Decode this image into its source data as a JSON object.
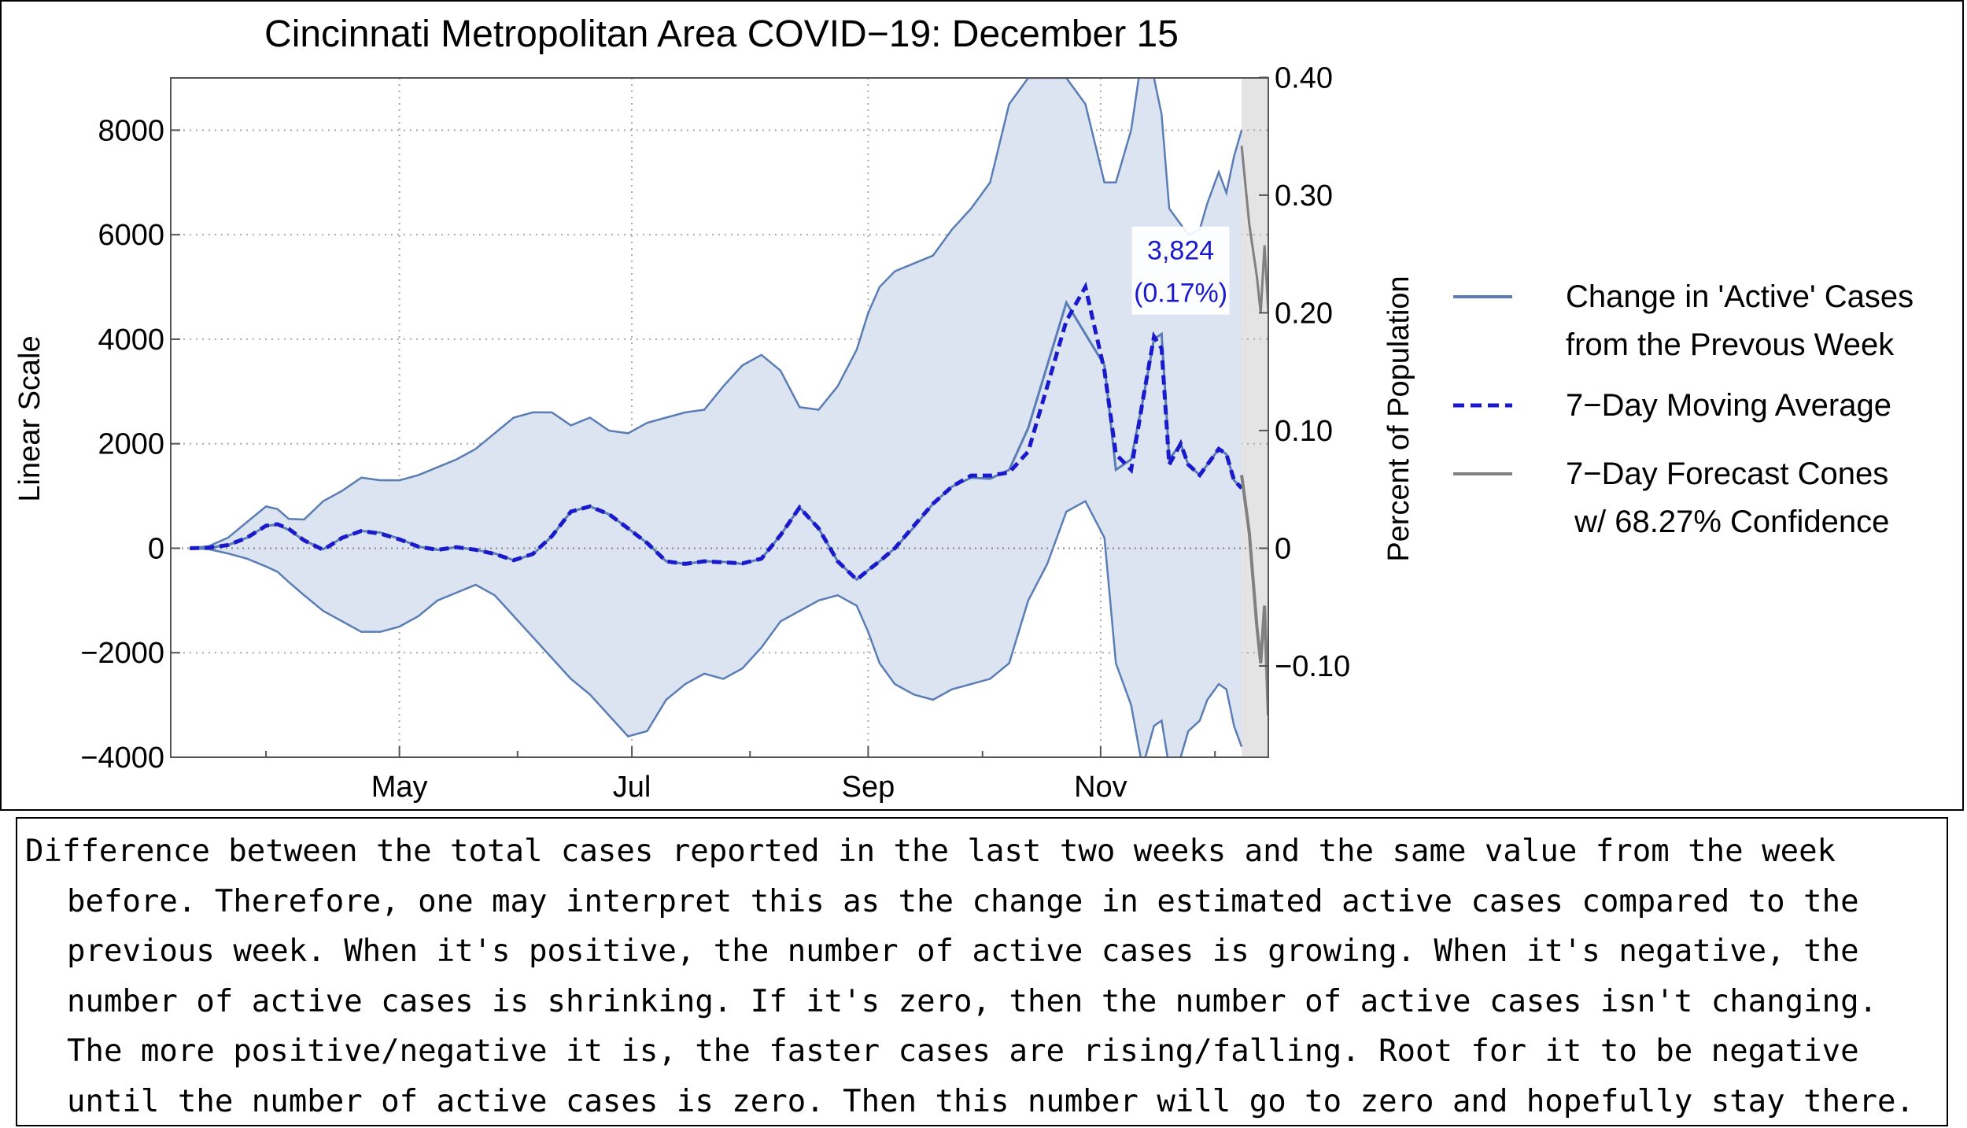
{
  "chart_data": {
    "type": "line",
    "title": "Cincinnati Metropolitan Area COVID−19: December 15",
    "ylabel_left": "Linear Scale",
    "ylabel_right": "Percent of Population",
    "ylim": [
      -4000,
      9000
    ],
    "y_ticks": [
      {
        "value": 8000,
        "label": "8000"
      },
      {
        "value": 6000,
        "label": "6000"
      },
      {
        "value": 4000,
        "label": "4000"
      },
      {
        "value": 2000,
        "label": "2000"
      },
      {
        "value": 0,
        "label": "0"
      },
      {
        "value": -2000,
        "label": "−2000"
      },
      {
        "value": -4000,
        "label": "−4000"
      }
    ],
    "y2_ticks": [
      {
        "value": 0.4,
        "label": "0.40"
      },
      {
        "value": 0.3,
        "label": "0.30"
      },
      {
        "value": 0.2,
        "label": "0.20"
      },
      {
        "value": 0.1,
        "label": "0.10"
      },
      {
        "value": 0,
        "label": "0"
      },
      {
        "value": -0.1,
        "label": "−0.10"
      }
    ],
    "y2_per_unit": 4.44e-05,
    "x_tick_labels": [
      {
        "day": 60,
        "label": "May"
      },
      {
        "day": 121,
        "label": "Jul"
      },
      {
        "day": 183,
        "label": "Sep"
      },
      {
        "day": 244,
        "label": "Nov"
      }
    ],
    "x_range_days": [
      0,
      288
    ],
    "x_minor_ticks": [
      25,
      91,
      152,
      213,
      274
    ],
    "x_gridlines": [
      60,
      121,
      183,
      244
    ],
    "forecast_start_day": 281,
    "annotation": {
      "day": 265,
      "value": 4500,
      "line1": "3,824",
      "line2": "(0.17%)"
    },
    "days": [
      5,
      10,
      15,
      20,
      25,
      28,
      31,
      35,
      40,
      45,
      50,
      55,
      60,
      65,
      70,
      75,
      80,
      85,
      90,
      95,
      100,
      105,
      110,
      115,
      120,
      125,
      130,
      135,
      140,
      145,
      150,
      155,
      160,
      165,
      170,
      175,
      180,
      183,
      186,
      190,
      195,
      200,
      205,
      210,
      215,
      220,
      225,
      230,
      235,
      240,
      245,
      248,
      252,
      255,
      258,
      260,
      262,
      265,
      267,
      270,
      272,
      275,
      277,
      279,
      281
    ],
    "series": [
      {
        "name": "Change in 'Active' Cases from the Prevous Week",
        "role": "observed",
        "values": [
          0,
          10,
          60,
          200,
          430,
          450,
          350,
          150,
          -20,
          200,
          330,
          300,
          180,
          30,
          -30,
          20,
          -30,
          -100,
          -230,
          -120,
          230,
          700,
          800,
          650,
          380,
          100,
          -250,
          -300,
          -250,
          -260,
          -300,
          -200,
          250,
          780,
          380,
          -250,
          -600,
          -420,
          -250,
          0,
          400,
          850,
          1180,
          1350,
          1330,
          1500,
          2300,
          3500,
          4700,
          4100,
          3500,
          1500,
          1700,
          2800,
          4000,
          4100,
          1700,
          2000,
          1600,
          1400,
          1600,
          1900,
          1800,
          1300,
          1150
        ]
      },
      {
        "name": "7−Day Moving Average",
        "role": "moving-average",
        "values": [
          0,
          10,
          60,
          200,
          430,
          460,
          370,
          150,
          -30,
          200,
          330,
          280,
          170,
          30,
          -30,
          20,
          -30,
          -110,
          -230,
          -110,
          230,
          700,
          800,
          650,
          380,
          100,
          -250,
          -300,
          -250,
          -270,
          -290,
          -200,
          250,
          780,
          380,
          -250,
          -600,
          -420,
          -250,
          0,
          430,
          850,
          1180,
          1390,
          1390,
          1450,
          1850,
          3100,
          4350,
          5000,
          3400,
          1800,
          1500,
          2800,
          4050,
          3824,
          1600,
          2000,
          1600,
          1400,
          1600,
          1900,
          1800,
          1300,
          1150
        ]
      },
      {
        "name": "7−Day Forecast Cones w/ 68.27% Confidence",
        "role": "forecast",
        "days": [
          281,
          283,
          285,
          286,
          287,
          288
        ],
        "values": [
          1400,
          300,
          -1500,
          -2200,
          -1100,
          -3200
        ],
        "upper": [
          7700,
          6200,
          5200,
          4500,
          5800,
          4500
        ]
      }
    ],
    "band": {
      "upper": [
        0,
        40,
        200,
        500,
        800,
        750,
        560,
        550,
        900,
        1100,
        1350,
        1300,
        1300,
        1400,
        1550,
        1700,
        1900,
        2200,
        2500,
        2600,
        2600,
        2350,
        2500,
        2250,
        2200,
        2400,
        2500,
        2600,
        2650,
        3100,
        3500,
        3700,
        3400,
        2700,
        2650,
        3100,
        3800,
        4500,
        5000,
        5300,
        5450,
        5600,
        6100,
        6500,
        7000,
        8500,
        9000,
        9000,
        9000,
        8500,
        7000,
        7000,
        8000,
        9500,
        9000,
        8300,
        6500,
        6200,
        6000,
        6100,
        6600,
        7200,
        6800,
        7500,
        8000
      ],
      "lower": [
        0,
        -20,
        -100,
        -200,
        -350,
        -450,
        -650,
        -900,
        -1200,
        -1400,
        -1600,
        -1600,
        -1500,
        -1300,
        -1000,
        -850,
        -700,
        -900,
        -1300,
        -1700,
        -2100,
        -2500,
        -2800,
        -3200,
        -3600,
        -3500,
        -2900,
        -2600,
        -2400,
        -2500,
        -2300,
        -1900,
        -1400,
        -1200,
        -1000,
        -900,
        -1100,
        -1600,
        -2200,
        -2600,
        -2800,
        -2900,
        -2700,
        -2600,
        -2500,
        -2200,
        -1000,
        -300,
        700,
        900,
        200,
        -2200,
        -3000,
        -4200,
        -3400,
        -3300,
        -4200,
        -4000,
        -3500,
        -3300,
        -2900,
        -2600,
        -2700,
        -3400,
        -3800
      ]
    },
    "legend_position": "right",
    "legend": [
      {
        "style": "solid-blue",
        "line1": "Change in 'Active' Cases",
        "line2": "from the Prevous Week"
      },
      {
        "style": "dashed-blue",
        "line1": "7−Day Moving Average",
        "line2": ""
      },
      {
        "style": "solid-gray",
        "line1": "7−Day Forecast Cones",
        "line2": " w/ 68.27% Confidence"
      }
    ],
    "colors": {
      "observed": "#5a7db5",
      "moving_average": "#1a1acc",
      "forecast": "#808080",
      "band_fill": "#dbe4f0",
      "band_edge": "#5a7db5",
      "forecast_fill": "#e4e4e4",
      "annotation_text": "#1a1acc"
    }
  },
  "caption": {
    "lines": [
      "Difference between the total cases reported in the last two weeks and the same value from the week",
      "before. Therefore, one may interpret this as the change in estimated active cases compared to the",
      "previous week. When it's positive, the number of active cases is growing. When it's negative, the",
      "number of active cases is shrinking. If it's zero, then the number of active cases isn't changing.",
      "The more positive/negative it is, the faster cases are rising/falling. Root for it to be negative",
      "until the number of active cases is zero. Then this number will go to zero and hopefully stay there."
    ]
  }
}
